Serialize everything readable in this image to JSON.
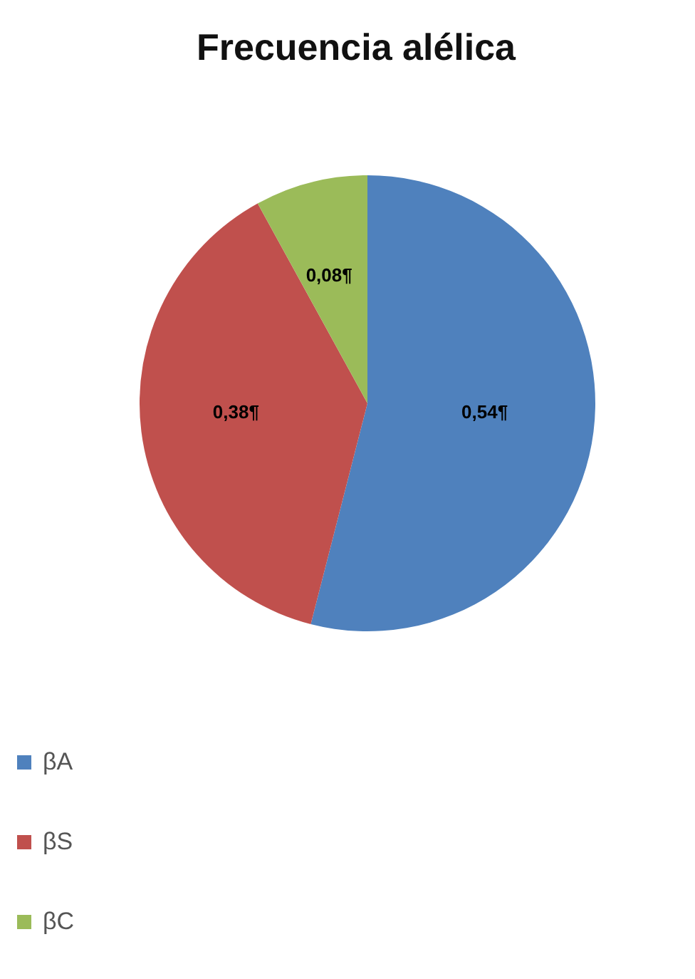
{
  "chart_data": {
    "type": "pie",
    "title": "Frecuencia alélica",
    "categories": [
      "βA",
      "βS",
      "βC"
    ],
    "values": [
      0.54,
      0.38,
      0.08
    ],
    "colors": [
      "#4f81bd",
      "#c0504d",
      "#9bbb59"
    ],
    "value_labels": [
      "0,54¶",
      "0,38¶",
      "0,08¶"
    ],
    "legend": "bottom left"
  }
}
